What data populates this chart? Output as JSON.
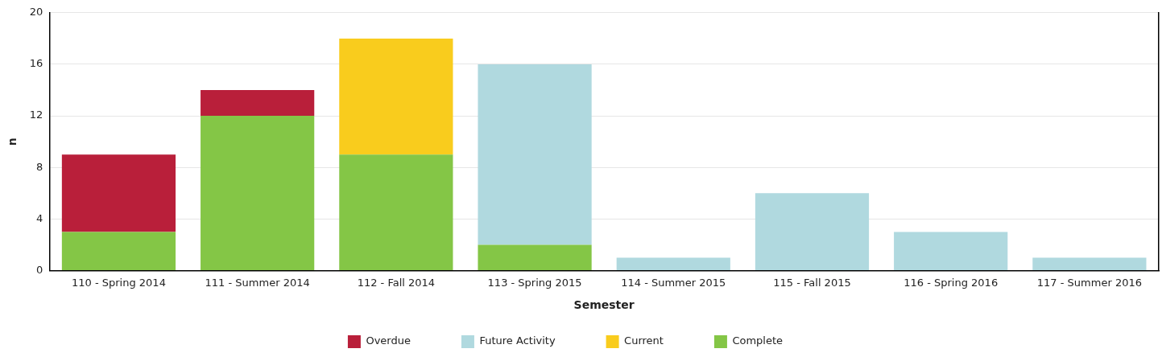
{
  "chart_data": {
    "type": "bar",
    "stacked": true,
    "xlabel": "Semester",
    "ylabel": "n",
    "categories": [
      "110 - Spring 2014",
      "111 - Summer 2014",
      "112 - Fall 2014",
      "113 - Spring 2015",
      "114 - Summer 2015",
      "115 - Fall 2015",
      "116 - Spring 2016",
      "117 - Summer 2016"
    ],
    "series": [
      {
        "name": "Complete",
        "color": "#84c646",
        "values": [
          3,
          12,
          9,
          2,
          null,
          null,
          null,
          null
        ]
      },
      {
        "name": "Current",
        "color": "#f9cc1d",
        "values": [
          null,
          null,
          9,
          null,
          null,
          null,
          null,
          null
        ]
      },
      {
        "name": "Future Activity",
        "color": "#b0d9df",
        "values": [
          null,
          null,
          null,
          14,
          1,
          6,
          3,
          1
        ]
      },
      {
        "name": "Overdue",
        "color": "#b91f3a",
        "values": [
          6,
          2,
          null,
          null,
          null,
          null,
          null,
          null
        ]
      }
    ],
    "ylim": [
      0,
      20
    ],
    "yticks": [
      0,
      4,
      8,
      12,
      16,
      20
    ],
    "grid": "y",
    "legend": "bottom"
  }
}
